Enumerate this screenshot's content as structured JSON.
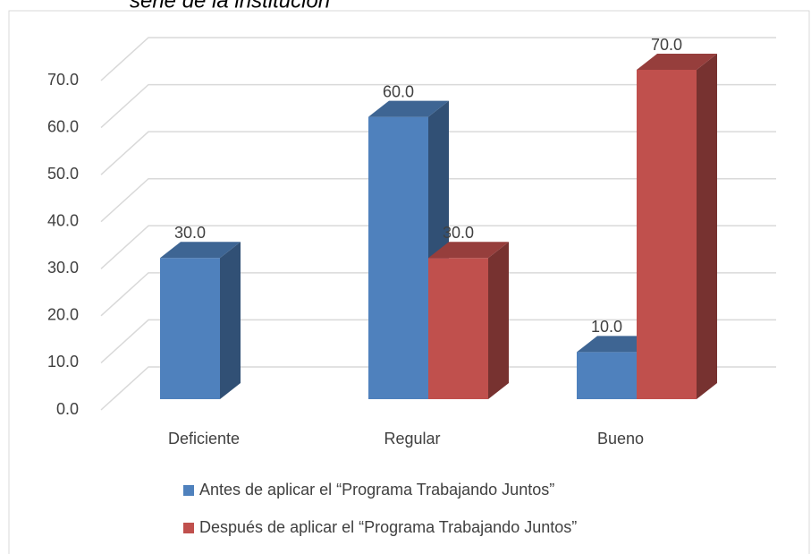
{
  "chart_data": {
    "type": "bar3d",
    "title": "serie de la institución",
    "categories": [
      "Deficiente",
      "Regular",
      "Bueno"
    ],
    "series": [
      {
        "name": "Antes de aplicar el “Programa Trabajando Juntos”",
        "color": "#4f81bd",
        "values": [
          30,
          60,
          10
        ],
        "value_labels": [
          "30.0",
          "60.0",
          "10.0"
        ]
      },
      {
        "name": "Después de aplicar el “Programa Trabajando Juntos”",
        "color": "#c0504d",
        "values": [
          null,
          30,
          70
        ],
        "value_labels": [
          null,
          "30.0",
          "70.0"
        ]
      }
    ],
    "ylim": [
      0,
      70
    ],
    "yticks": [
      {
        "value": 0,
        "label": "0.0"
      },
      {
        "value": 10,
        "label": "10.0"
      },
      {
        "value": 20,
        "label": "20.0"
      },
      {
        "value": 30,
        "label": "30.0"
      },
      {
        "value": 40,
        "label": "40.0"
      },
      {
        "value": 50,
        "label": "50.0"
      },
      {
        "value": 60,
        "label": "60.0"
      },
      {
        "value": 70,
        "label": "70.0"
      }
    ],
    "grid": true,
    "legend": "bottom"
  }
}
